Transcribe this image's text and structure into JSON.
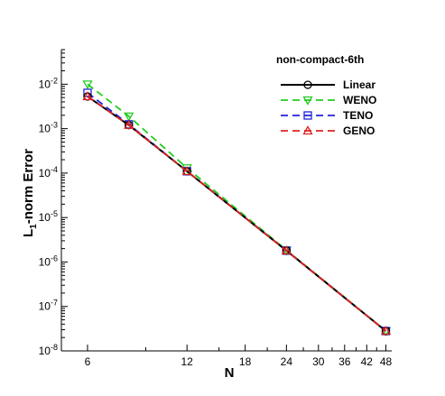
{
  "chart_data": {
    "type": "line",
    "xscale": "log",
    "yscale": "log",
    "xlabel": "N",
    "ylabel_main": "L",
    "ylabel_sub": "1",
    "ylabel_rest": "-norm Error",
    "xlim": [
      5,
      50
    ],
    "ylim": [
      1e-08,
      0.06
    ],
    "xticks": [
      6,
      12,
      18,
      24,
      30,
      36,
      42,
      48
    ],
    "yticks": [
      {
        "value": 1e-08,
        "mantissa": "10",
        "exp": "-8"
      },
      {
        "value": 1e-07,
        "mantissa": "10",
        "exp": "-7"
      },
      {
        "value": 1e-06,
        "mantissa": "10",
        "exp": "-6"
      },
      {
        "value": 1e-05,
        "mantissa": "10",
        "exp": "-5"
      },
      {
        "value": 0.0001,
        "mantissa": "10",
        "exp": "-4"
      },
      {
        "value": 0.001,
        "mantissa": "10",
        "exp": "-3"
      },
      {
        "value": 0.01,
        "mantissa": "10",
        "exp": "-2"
      }
    ],
    "legend_title": "non-compact-6th",
    "legend_position": "top-right",
    "grid": false,
    "x": [
      6,
      8,
      12,
      24,
      48
    ],
    "series": [
      {
        "name": "Linear",
        "values": [
          0.0053,
          0.0012,
          0.00011,
          1.8e-06,
          2.8e-08
        ],
        "color": "#000000",
        "dash": "solid",
        "marker": "circle"
      },
      {
        "name": "WENO",
        "values": [
          0.01,
          0.0019,
          0.00013,
          1.85e-06,
          2.8e-08
        ],
        "color": "#22cc22",
        "dash": "dashed",
        "marker": "triangle-down"
      },
      {
        "name": "TENO",
        "values": [
          0.0064,
          0.00125,
          0.00011,
          1.8e-06,
          2.8e-08
        ],
        "color": "#2222dd",
        "dash": "dashed",
        "marker": "square"
      },
      {
        "name": "GENO",
        "values": [
          0.0053,
          0.0012,
          0.00011,
          1.8e-06,
          2.8e-08
        ],
        "color": "#dd2222",
        "dash": "dashed",
        "marker": "triangle-up"
      }
    ]
  }
}
